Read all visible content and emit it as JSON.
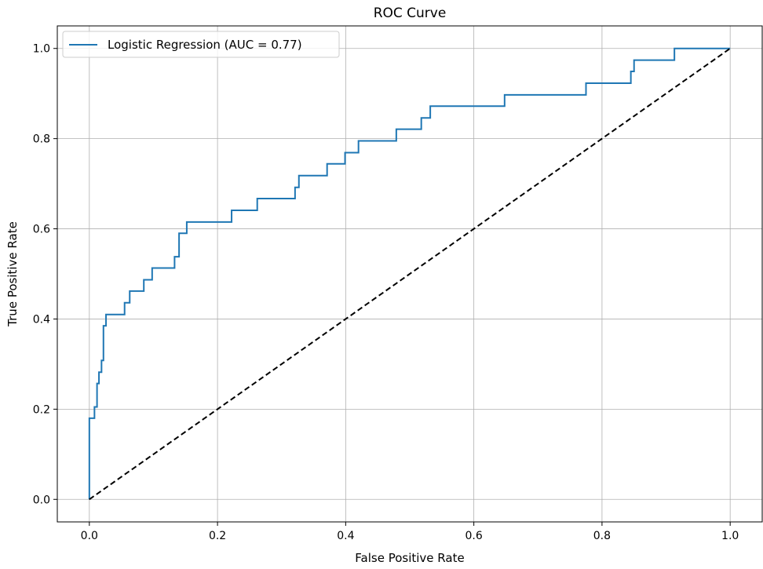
{
  "chart_data": {
    "type": "line",
    "title": "ROC Curve",
    "xlabel": "False Positive Rate",
    "ylabel": "True Positive Rate",
    "xlim": [
      -0.05,
      1.05
    ],
    "ylim": [
      -0.05,
      1.05
    ],
    "xticks": [
      "0.0",
      "0.2",
      "0.4",
      "0.6",
      "0.8",
      "1.0"
    ],
    "yticks": [
      "0.0",
      "0.2",
      "0.4",
      "0.6",
      "0.8",
      "1.0"
    ],
    "grid": true,
    "legend_position": "upper-left",
    "series": [
      {
        "name": "Logistic Regression (AUC = 0.77)",
        "color": "#1f77b4",
        "style": "step",
        "x": [
          0.0,
          0.0,
          0.008,
          0.008,
          0.012,
          0.012,
          0.015,
          0.015,
          0.019,
          0.019,
          0.022,
          0.022,
          0.026,
          0.026,
          0.055,
          0.055,
          0.063,
          0.063,
          0.085,
          0.085,
          0.098,
          0.098,
          0.133,
          0.133,
          0.14,
          0.14,
          0.152,
          0.152,
          0.222,
          0.222,
          0.262,
          0.262,
          0.321,
          0.321,
          0.327,
          0.327,
          0.371,
          0.371,
          0.399,
          0.399,
          0.42,
          0.42,
          0.479,
          0.479,
          0.518,
          0.518,
          0.532,
          0.532,
          0.648,
          0.648,
          0.775,
          0.775,
          0.845,
          0.845,
          0.85,
          0.85,
          0.913,
          0.913,
          1.0
        ],
        "y": [
          0.0,
          0.18,
          0.18,
          0.205,
          0.205,
          0.257,
          0.257,
          0.282,
          0.282,
          0.308,
          0.308,
          0.385,
          0.385,
          0.41,
          0.41,
          0.436,
          0.436,
          0.462,
          0.462,
          0.487,
          0.487,
          0.513,
          0.513,
          0.538,
          0.538,
          0.59,
          0.59,
          0.615,
          0.615,
          0.641,
          0.641,
          0.667,
          0.667,
          0.692,
          0.692,
          0.718,
          0.718,
          0.744,
          0.744,
          0.769,
          0.769,
          0.795,
          0.795,
          0.821,
          0.821,
          0.846,
          0.846,
          0.872,
          0.872,
          0.897,
          0.897,
          0.923,
          0.923,
          0.949,
          0.949,
          0.974,
          0.974,
          1.0,
          1.0
        ]
      },
      {
        "name": "",
        "color": "#000000",
        "style": "dashed",
        "x": [
          0.0,
          1.0
        ],
        "y": [
          0.0,
          1.0
        ]
      }
    ]
  }
}
